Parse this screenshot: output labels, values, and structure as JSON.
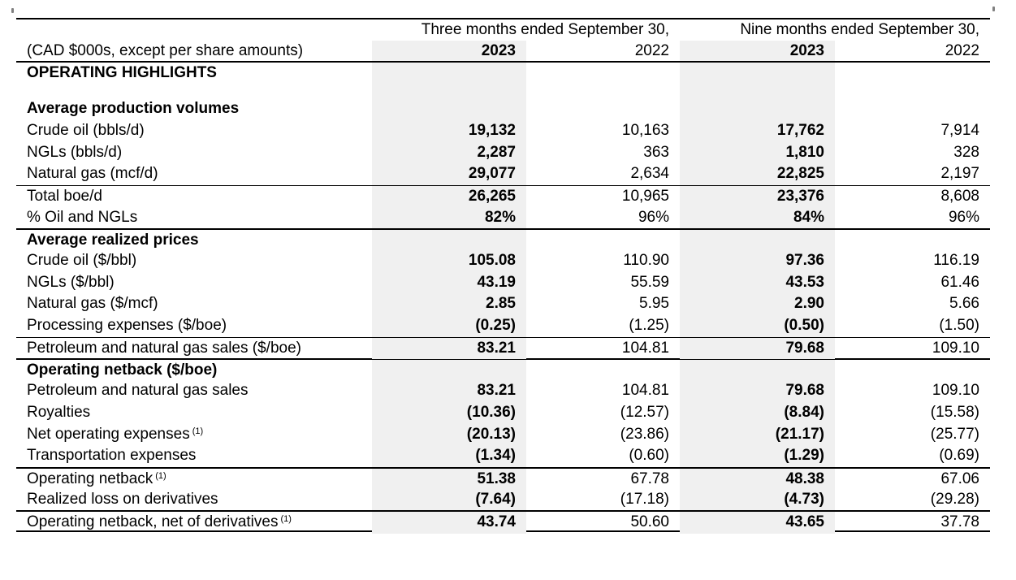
{
  "table": {
    "unit_label": "(CAD $000s, except per share amounts)",
    "group_headers": [
      "Three months ended September 30,",
      "Nine months ended September 30,"
    ],
    "year_headers": [
      "2023",
      "2022",
      "2023",
      "2022"
    ],
    "colors": {
      "shade": "#f0f0f0",
      "text": "#000000",
      "rule": "#000000"
    },
    "rows": [
      {
        "type": "section",
        "label": "OPERATING HIGHLIGHTS"
      },
      {
        "type": "blank"
      },
      {
        "type": "section",
        "label": "Average production volumes"
      },
      {
        "type": "data",
        "label": "Crude oil (bbls/d)",
        "values": [
          "19,132",
          "10,163",
          "17,762",
          "7,914"
        ]
      },
      {
        "type": "data",
        "label": "NGLs (bbls/d)",
        "values": [
          "2,287",
          "363",
          "1,810",
          "328"
        ]
      },
      {
        "type": "data",
        "label": "Natural gas (mcf/d)",
        "values": [
          "29,077",
          "2,634",
          "22,825",
          "2,197"
        ]
      },
      {
        "type": "data",
        "label": "Total boe/d",
        "border_top": "thin",
        "values": [
          "26,265",
          "10,965",
          "23,376",
          "8,608"
        ]
      },
      {
        "type": "data",
        "label": "% Oil and NGLs",
        "values": [
          "82%",
          "96%",
          "84%",
          "96%"
        ]
      },
      {
        "type": "section",
        "label": "Average realized prices",
        "border_top": "thick"
      },
      {
        "type": "data",
        "label": "Crude oil ($/bbl)",
        "values": [
          "105.08",
          "110.90",
          "97.36",
          "116.19"
        ]
      },
      {
        "type": "data",
        "label": "NGLs ($/bbl)",
        "values": [
          "43.19",
          "55.59",
          "43.53",
          "61.46"
        ]
      },
      {
        "type": "data",
        "label": "Natural gas ($/mcf)",
        "values": [
          "2.85",
          "5.95",
          "2.90",
          "5.66"
        ]
      },
      {
        "type": "data",
        "label": "Processing expenses ($/boe)",
        "values": [
          "(0.25)",
          "(1.25)",
          "(0.50)",
          "(1.50)"
        ]
      },
      {
        "type": "data",
        "label": "Petroleum and natural gas sales ($/boe)",
        "border_top": "thin",
        "values": [
          "83.21",
          "104.81",
          "79.68",
          "109.10"
        ]
      },
      {
        "type": "section",
        "label": "Operating netback ($/boe)",
        "border_top": "thick"
      },
      {
        "type": "data",
        "label": "Petroleum and natural gas sales",
        "values": [
          "83.21",
          "104.81",
          "79.68",
          "109.10"
        ]
      },
      {
        "type": "data",
        "label": "Royalties",
        "values": [
          "(10.36)",
          "(12.57)",
          "(8.84)",
          "(15.58)"
        ]
      },
      {
        "type": "data",
        "label": "Net operating expenses",
        "sup": "(1)",
        "values": [
          "(20.13)",
          "(23.86)",
          "(21.17)",
          "(25.77)"
        ]
      },
      {
        "type": "data",
        "label": "Transportation expenses",
        "values": [
          "(1.34)",
          "(0.60)",
          "(1.29)",
          "(0.69)"
        ]
      },
      {
        "type": "data",
        "label": "Operating netback",
        "sup": "(1)",
        "border_top": "thick",
        "values": [
          "51.38",
          "67.78",
          "48.38",
          "67.06"
        ]
      },
      {
        "type": "data",
        "label": "Realized loss on derivatives",
        "values": [
          "(7.64)",
          "(17.18)",
          "(4.73)",
          "(29.28)"
        ]
      },
      {
        "type": "data",
        "label": "Operating netback, net of derivatives",
        "sup": "(1)",
        "border_top": "thick",
        "values": [
          "43.74",
          "50.60",
          "43.65",
          "37.78"
        ]
      }
    ]
  }
}
